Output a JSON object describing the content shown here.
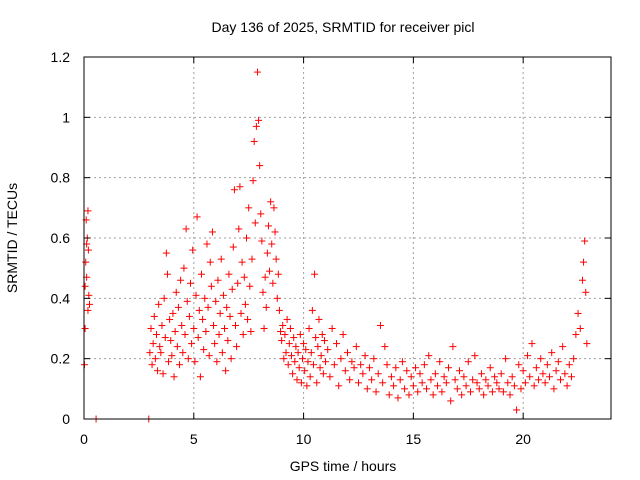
{
  "chart_data": {
    "type": "scatter",
    "title": "Day 136 of 2025, SRMTID for receiver picl",
    "xlabel": "GPS time / hours",
    "ylabel": "SRMTID / TECUs",
    "xlim": [
      0,
      24
    ],
    "ylim": [
      0,
      1.2
    ],
    "x_ticks": [
      0,
      5,
      10,
      15,
      20
    ],
    "x_tick_labels": [
      "0",
      "5",
      "10",
      "15",
      "20"
    ],
    "y_ticks": [
      0,
      0.2,
      0.4,
      0.6,
      0.8,
      1.0,
      1.2
    ],
    "y_tick_labels": [
      "0",
      "0.2",
      "0.4",
      "0.6",
      "0.8",
      "1",
      "1.2"
    ],
    "grid": true,
    "marker": "+",
    "color": "#ff0000",
    "series": [
      {
        "name": "SRMTID",
        "points": [
          [
            0.02,
            0.18
          ],
          [
            0.05,
            0.3
          ],
          [
            0.08,
            0.52
          ],
          [
            0.1,
            0.66
          ],
          [
            0.12,
            0.47
          ],
          [
            0.15,
            0.6
          ],
          [
            0.18,
            0.69
          ],
          [
            0.2,
            0.56
          ],
          [
            0.22,
            0.41
          ],
          [
            0.25,
            0.38
          ],
          [
            0.05,
            0.44
          ],
          [
            0.12,
            0.58
          ],
          [
            0.18,
            0.36
          ],
          [
            0.55,
            0.0
          ],
          [
            2.95,
            0.0
          ],
          [
            3.0,
            0.22
          ],
          [
            3.05,
            0.3
          ],
          [
            3.1,
            0.18
          ],
          [
            3.15,
            0.25
          ],
          [
            3.2,
            0.34
          ],
          [
            3.25,
            0.2
          ],
          [
            3.3,
            0.28
          ],
          [
            3.35,
            0.16
          ],
          [
            3.4,
            0.38
          ],
          [
            3.45,
            0.24
          ],
          [
            3.5,
            0.22
          ],
          [
            3.55,
            0.31
          ],
          [
            3.6,
            0.15
          ],
          [
            3.65,
            0.4
          ],
          [
            3.7,
            0.27
          ],
          [
            3.75,
            0.55
          ],
          [
            3.8,
            0.48
          ],
          [
            3.85,
            0.19
          ],
          [
            3.9,
            0.33
          ],
          [
            3.95,
            0.26
          ],
          [
            4.0,
            0.21
          ],
          [
            4.05,
            0.35
          ],
          [
            4.1,
            0.14
          ],
          [
            4.15,
            0.29
          ],
          [
            4.2,
            0.42
          ],
          [
            4.25,
            0.24
          ],
          [
            4.3,
            0.37
          ],
          [
            4.35,
            0.18
          ],
          [
            4.4,
            0.46
          ],
          [
            4.45,
            0.31
          ],
          [
            4.5,
            0.22
          ],
          [
            4.55,
            0.5
          ],
          [
            4.6,
            0.28
          ],
          [
            4.65,
            0.63
          ],
          [
            4.7,
            0.39
          ],
          [
            4.75,
            0.2
          ],
          [
            4.8,
            0.34
          ],
          [
            4.85,
            0.45
          ],
          [
            4.9,
            0.25
          ],
          [
            4.95,
            0.56
          ],
          [
            5.0,
            0.3
          ],
          [
            5.05,
            0.19
          ],
          [
            5.1,
            0.41
          ],
          [
            5.15,
            0.67
          ],
          [
            5.2,
            0.27
          ],
          [
            5.25,
            0.36
          ],
          [
            5.3,
            0.14
          ],
          [
            5.35,
            0.48
          ],
          [
            5.4,
            0.33
          ],
          [
            5.45,
            0.23
          ],
          [
            5.5,
            0.4
          ],
          [
            5.55,
            0.29
          ],
          [
            5.6,
            0.58
          ],
          [
            5.65,
            0.37
          ],
          [
            5.7,
            0.21
          ],
          [
            5.75,
            0.52
          ],
          [
            5.8,
            0.44
          ],
          [
            5.85,
            0.62
          ],
          [
            5.9,
            0.31
          ],
          [
            5.95,
            0.25
          ],
          [
            6.0,
            0.39
          ],
          [
            6.05,
            0.19
          ],
          [
            6.1,
            0.46
          ],
          [
            6.15,
            0.28
          ],
          [
            6.2,
            0.35
          ],
          [
            6.25,
            0.53
          ],
          [
            6.3,
            0.22
          ],
          [
            6.35,
            0.41
          ],
          [
            6.4,
            0.3
          ],
          [
            6.45,
            0.16
          ],
          [
            6.5,
            0.37
          ],
          [
            6.55,
            0.26
          ],
          [
            6.6,
            0.48
          ],
          [
            6.65,
            0.34
          ],
          [
            6.7,
            0.2
          ],
          [
            6.75,
            0.43
          ],
          [
            6.8,
            0.57
          ],
          [
            6.85,
            0.76
          ],
          [
            6.9,
            0.31
          ],
          [
            6.95,
            0.24
          ],
          [
            7.0,
            0.45
          ],
          [
            7.05,
            0.63
          ],
          [
            7.1,
            0.77
          ],
          [
            7.15,
            0.35
          ],
          [
            7.2,
            0.52
          ],
          [
            7.25,
            0.28
          ],
          [
            7.3,
            0.47
          ],
          [
            7.35,
            0.38
          ],
          [
            7.4,
            0.6
          ],
          [
            7.45,
            0.33
          ],
          [
            7.5,
            0.7
          ],
          [
            7.55,
            0.44
          ],
          [
            7.6,
            0.29
          ],
          [
            7.65,
            0.53
          ],
          [
            7.7,
            0.79
          ],
          [
            7.75,
            0.92
          ],
          [
            7.8,
            0.65
          ],
          [
            7.85,
            0.97
          ],
          [
            7.9,
            1.15
          ],
          [
            7.95,
            0.99
          ],
          [
            8.0,
            0.84
          ],
          [
            8.05,
            0.68
          ],
          [
            8.1,
            0.59
          ],
          [
            8.15,
            0.42
          ],
          [
            8.2,
            0.3
          ],
          [
            8.25,
            0.47
          ],
          [
            8.3,
            0.37
          ],
          [
            8.35,
            0.55
          ],
          [
            8.4,
            0.64
          ],
          [
            8.45,
            0.49
          ],
          [
            8.5,
            0.72
          ],
          [
            8.55,
            0.58
          ],
          [
            8.6,
            0.45
          ],
          [
            8.65,
            0.7
          ],
          [
            8.7,
            0.62
          ],
          [
            8.75,
            0.53
          ],
          [
            8.8,
            0.4
          ],
          [
            8.85,
            0.48
          ],
          [
            8.9,
            0.36
          ],
          [
            8.95,
            0.29
          ],
          [
            9.0,
            0.26
          ],
          [
            9.05,
            0.31
          ],
          [
            9.1,
            0.2
          ],
          [
            9.15,
            0.28
          ],
          [
            9.2,
            0.22
          ],
          [
            9.25,
            0.33
          ],
          [
            9.3,
            0.18
          ],
          [
            9.35,
            0.25
          ],
          [
            9.4,
            0.3
          ],
          [
            9.45,
            0.21
          ],
          [
            9.5,
            0.15
          ],
          [
            9.55,
            0.27
          ],
          [
            9.6,
            0.19
          ],
          [
            9.65,
            0.24
          ],
          [
            9.7,
            0.13
          ],
          [
            9.75,
            0.22
          ],
          [
            9.8,
            0.17
          ],
          [
            9.85,
            0.28
          ],
          [
            9.9,
            0.12
          ],
          [
            9.95,
            0.2
          ],
          [
            10.0,
            0.25
          ],
          [
            10.05,
            0.16
          ],
          [
            10.1,
            0.23
          ],
          [
            10.15,
            0.11
          ],
          [
            10.2,
            0.19
          ],
          [
            10.25,
            0.3
          ],
          [
            10.3,
            0.14
          ],
          [
            10.35,
            0.22
          ],
          [
            10.4,
            0.36
          ],
          [
            10.45,
            0.18
          ],
          [
            10.5,
            0.48
          ],
          [
            10.55,
            0.27
          ],
          [
            10.6,
            0.12
          ],
          [
            10.65,
            0.24
          ],
          [
            10.7,
            0.33
          ],
          [
            10.75,
            0.17
          ],
          [
            10.8,
            0.21
          ],
          [
            10.85,
            0.28
          ],
          [
            10.9,
            0.15
          ],
          [
            10.95,
            0.26
          ],
          [
            11.0,
            0.19
          ],
          [
            11.1,
            0.23
          ],
          [
            11.2,
            0.14
          ],
          [
            11.3,
            0.3
          ],
          [
            11.4,
            0.18
          ],
          [
            11.5,
            0.25
          ],
          [
            11.6,
            0.11
          ],
          [
            11.7,
            0.2
          ],
          [
            11.8,
            0.28
          ],
          [
            11.9,
            0.16
          ],
          [
            12.0,
            0.22
          ],
          [
            12.1,
            0.13
          ],
          [
            12.2,
            0.19
          ],
          [
            12.3,
            0.17
          ],
          [
            12.4,
            0.24
          ],
          [
            12.5,
            0.12
          ],
          [
            12.6,
            0.18
          ],
          [
            12.7,
            0.15
          ],
          [
            12.8,
            0.21
          ],
          [
            12.9,
            0.1
          ],
          [
            13.0,
            0.17
          ],
          [
            13.1,
            0.13
          ],
          [
            13.2,
            0.2
          ],
          [
            13.3,
            0.09
          ],
          [
            13.4,
            0.15
          ],
          [
            13.5,
            0.31
          ],
          [
            13.6,
            0.12
          ],
          [
            13.7,
            0.24
          ],
          [
            13.8,
            0.18
          ],
          [
            13.9,
            0.08
          ],
          [
            14.0,
            0.14
          ],
          [
            14.1,
            0.11
          ],
          [
            14.2,
            0.17
          ],
          [
            14.3,
            0.07
          ],
          [
            14.4,
            0.13
          ],
          [
            14.5,
            0.19
          ],
          [
            14.6,
            0.1
          ],
          [
            14.7,
            0.16
          ],
          [
            14.8,
            0.08
          ],
          [
            14.9,
            0.14
          ],
          [
            15.0,
            0.11
          ],
          [
            15.1,
            0.17
          ],
          [
            15.2,
            0.09
          ],
          [
            15.3,
            0.15
          ],
          [
            15.4,
            0.12
          ],
          [
            15.5,
            0.18
          ],
          [
            15.6,
            0.1
          ],
          [
            15.7,
            0.21
          ],
          [
            15.8,
            0.13
          ],
          [
            15.9,
            0.08
          ],
          [
            16.0,
            0.15
          ],
          [
            16.1,
            0.11
          ],
          [
            16.2,
            0.19
          ],
          [
            16.3,
            0.09
          ],
          [
            16.4,
            0.14
          ],
          [
            16.5,
            0.12
          ],
          [
            16.6,
            0.17
          ],
          [
            16.7,
            0.06
          ],
          [
            16.8,
            0.24
          ],
          [
            16.9,
            0.13
          ],
          [
            17.0,
            0.1
          ],
          [
            17.1,
            0.16
          ],
          [
            17.2,
            0.08
          ],
          [
            17.3,
            0.14
          ],
          [
            17.4,
            0.11
          ],
          [
            17.5,
            0.19
          ],
          [
            17.6,
            0.09
          ],
          [
            17.7,
            0.13
          ],
          [
            17.8,
            0.21
          ],
          [
            17.9,
            0.12
          ],
          [
            18.0,
            0.1
          ],
          [
            18.1,
            0.15
          ],
          [
            18.2,
            0.08
          ],
          [
            18.3,
            0.13
          ],
          [
            18.4,
            0.11
          ],
          [
            18.5,
            0.17
          ],
          [
            18.6,
            0.09
          ],
          [
            18.7,
            0.14
          ],
          [
            18.8,
            0.12
          ],
          [
            18.9,
            0.1
          ],
          [
            19.0,
            0.15
          ],
          [
            19.1,
            0.09
          ],
          [
            19.2,
            0.2
          ],
          [
            19.3,
            0.12
          ],
          [
            19.4,
            0.08
          ],
          [
            19.5,
            0.14
          ],
          [
            19.6,
            0.11
          ],
          [
            19.7,
            0.03
          ],
          [
            19.8,
            0.18
          ],
          [
            19.9,
            0.1
          ],
          [
            20.0,
            0.16
          ],
          [
            20.1,
            0.12
          ],
          [
            20.2,
            0.21
          ],
          [
            20.3,
            0.14
          ],
          [
            20.4,
            0.25
          ],
          [
            20.5,
            0.11
          ],
          [
            20.6,
            0.17
          ],
          [
            20.7,
            0.13
          ],
          [
            20.8,
            0.2
          ],
          [
            20.9,
            0.15
          ],
          [
            21.0,
            0.12
          ],
          [
            21.1,
            0.18
          ],
          [
            21.2,
            0.14
          ],
          [
            21.3,
            0.22
          ],
          [
            21.4,
            0.1
          ],
          [
            21.5,
            0.16
          ],
          [
            21.6,
            0.19
          ],
          [
            21.7,
            0.13
          ],
          [
            21.8,
            0.24
          ],
          [
            21.9,
            0.15
          ],
          [
            22.0,
            0.11
          ],
          [
            22.1,
            0.18
          ],
          [
            22.2,
            0.14
          ],
          [
            22.3,
            0.2
          ],
          [
            22.4,
            0.28
          ],
          [
            22.5,
            0.35
          ],
          [
            22.6,
            0.3
          ],
          [
            22.7,
            0.46
          ],
          [
            22.75,
            0.52
          ],
          [
            22.8,
            0.59
          ],
          [
            22.85,
            0.42
          ],
          [
            22.9,
            0.25
          ]
        ]
      }
    ]
  }
}
